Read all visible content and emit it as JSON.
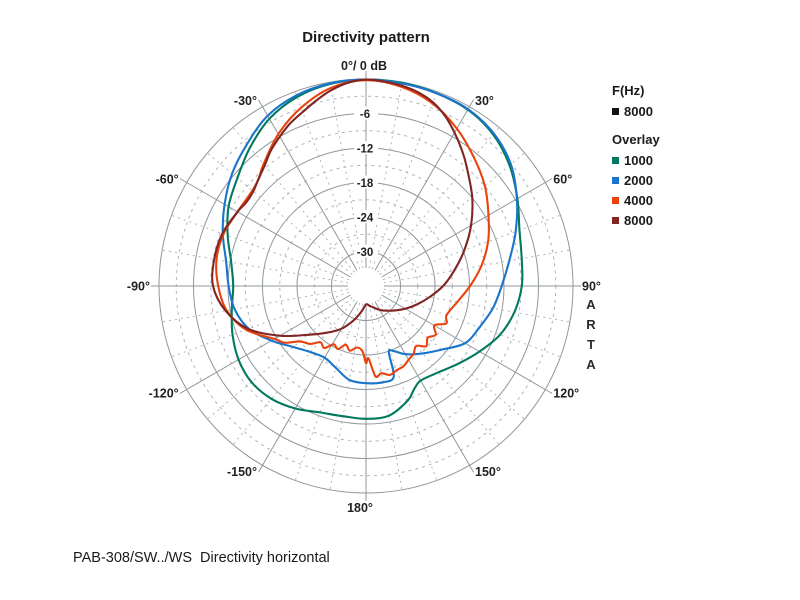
{
  "title": "Directivity pattern",
  "caption": "PAB-308/SW../WS  Directivity horizontal",
  "watermark": "ARTA",
  "legend": {
    "freq_title": "F(Hz)",
    "freq_items": [
      {
        "label": "8000",
        "color": "#141414"
      }
    ],
    "overlay_title": "Overlay",
    "overlay_items": [
      {
        "label": "1000",
        "color": "#00795E"
      },
      {
        "label": "2000",
        "color": "#1B74CB"
      },
      {
        "label": "4000",
        "color": "#E8430D"
      },
      {
        "label": "8000",
        "color": "#802521"
      }
    ]
  },
  "chart_data": {
    "type": "polar-directivity",
    "title": "Directivity pattern",
    "units": {
      "angle": "deg",
      "value": "dB"
    },
    "radial_axis": {
      "max_db": 0,
      "min_db": -36,
      "clamp_db": -33,
      "solid_rings_db": [
        0,
        -6,
        -12,
        -18,
        -24,
        -30
      ],
      "dashed_rings_db": [
        -3,
        -9,
        -15,
        -21,
        -27
      ],
      "ring_labels": [
        {
          "db": -6,
          "text": "-6"
        },
        {
          "db": -12,
          "text": "-12"
        },
        {
          "db": -18,
          "text": "-18"
        },
        {
          "db": -24,
          "text": "-24"
        },
        {
          "db": -30,
          "text": "-30"
        }
      ]
    },
    "angle_axis": {
      "major_step_deg": 30,
      "minor_step_deg": 10,
      "zero_label": "0°/ 0 dB",
      "labels": [
        {
          "angle": 0,
          "text": "0°/ 0 dB"
        },
        {
          "angle": 30,
          "text": "30°"
        },
        {
          "angle": 60,
          "text": "60°"
        },
        {
          "angle": 90,
          "text": "90°"
        },
        {
          "angle": 120,
          "text": "120°"
        },
        {
          "angle": 150,
          "text": "150°"
        },
        {
          "angle": 180,
          "text": "180°"
        },
        {
          "angle": -30,
          "text": "-30°"
        },
        {
          "angle": -60,
          "text": "-60°"
        },
        {
          "angle": -90,
          "text": "-90°"
        },
        {
          "angle": -120,
          "text": "-120°"
        },
        {
          "angle": -150,
          "text": "-150°"
        }
      ]
    },
    "colors": {
      "grid_major": "#8F979C",
      "grid_minor": "#AEB4B8",
      "text": "#1F1F1F"
    },
    "series": [
      {
        "name": "1000",
        "color": "#00795E",
        "points": [
          [
            -180,
            -12.9
          ],
          [
            -170,
            -13.0
          ],
          [
            -160,
            -12.6
          ],
          [
            -150,
            -11.4
          ],
          [
            -140,
            -10.4
          ],
          [
            -130,
            -10.0
          ],
          [
            -120,
            -10.4
          ],
          [
            -110,
            -11.3
          ],
          [
            -100,
            -12.3
          ],
          [
            -90,
            -12.9
          ],
          [
            -80,
            -12.2
          ],
          [
            -70,
            -10.4
          ],
          [
            -60,
            -8.4
          ],
          [
            -50,
            -6.8
          ],
          [
            -40,
            -4.6
          ],
          [
            -30,
            -2.4
          ],
          [
            -20,
            -1.0
          ],
          [
            -10,
            -0.3
          ],
          [
            0,
            -0.1
          ],
          [
            10,
            -0.1
          ],
          [
            20,
            -0.3
          ],
          [
            30,
            -0.6
          ],
          [
            40,
            -1.6
          ],
          [
            50,
            -3.4
          ],
          [
            60,
            -5.6
          ],
          [
            70,
            -7.6
          ],
          [
            80,
            -8.5
          ],
          [
            90,
            -8.9
          ],
          [
            100,
            -9.8
          ],
          [
            110,
            -11.2
          ],
          [
            120,
            -13.2
          ],
          [
            130,
            -15.0
          ],
          [
            140,
            -16.4
          ],
          [
            150,
            -17.0
          ],
          [
            155,
            -16.2
          ],
          [
            160,
            -14.8
          ],
          [
            170,
            -13.1
          ],
          [
            180,
            -12.9
          ]
        ]
      },
      {
        "name": "2000",
        "color": "#1B74CB",
        "points": [
          [
            -180,
            -19.1
          ],
          [
            -170,
            -19.4
          ],
          [
            -160,
            -20.8
          ],
          [
            -150,
            -21.6
          ],
          [
            -140,
            -21.0
          ],
          [
            -130,
            -19.5
          ],
          [
            -120,
            -17.0
          ],
          [
            -110,
            -14.3
          ],
          [
            -100,
            -12.8
          ],
          [
            -90,
            -12.1
          ],
          [
            -80,
            -11.3
          ],
          [
            -70,
            -9.5
          ],
          [
            -60,
            -7.6
          ],
          [
            -50,
            -5.6
          ],
          [
            -40,
            -3.8
          ],
          [
            -30,
            -1.8
          ],
          [
            -20,
            -0.7
          ],
          [
            -10,
            -0.2
          ],
          [
            0,
            -0.1
          ],
          [
            10,
            -0.2
          ],
          [
            20,
            -0.3
          ],
          [
            30,
            -0.5
          ],
          [
            40,
            -1.4
          ],
          [
            50,
            -3.1
          ],
          [
            60,
            -5.7
          ],
          [
            70,
            -8.3
          ],
          [
            80,
            -10.7
          ],
          [
            90,
            -12.4
          ],
          [
            100,
            -13.6
          ],
          [
            110,
            -15.0
          ],
          [
            120,
            -16.1
          ],
          [
            130,
            -18.8
          ],
          [
            140,
            -20.7
          ],
          [
            150,
            -22.3
          ],
          [
            157,
            -23.7
          ],
          [
            161,
            -23.8
          ],
          [
            163,
            -19.5
          ],
          [
            170,
            -19.0
          ],
          [
            180,
            -19.1
          ]
        ]
      },
      {
        "name": "4000",
        "color": "#E8430D",
        "points": [
          [
            -180,
            -22.6
          ],
          [
            -177,
            -24.6
          ],
          [
            -172,
            -25.2
          ],
          [
            -166,
            -24.4
          ],
          [
            -161,
            -25.2
          ],
          [
            -156,
            -24.0
          ],
          [
            -151,
            -24.4
          ],
          [
            -146,
            -23.0
          ],
          [
            -141,
            -23.4
          ],
          [
            -136,
            -22.0
          ],
          [
            -130,
            -21.0
          ],
          [
            -125,
            -18.8
          ],
          [
            -120,
            -17.6
          ],
          [
            -110,
            -13.8
          ],
          [
            -100,
            -11.4
          ],
          [
            -90,
            -10.3
          ],
          [
            -80,
            -9.6
          ],
          [
            -70,
            -9.6
          ],
          [
            -60,
            -10.2
          ],
          [
            -50,
            -10.2
          ],
          [
            -45,
            -9.6
          ],
          [
            -40,
            -8.3
          ],
          [
            -30,
            -5.5
          ],
          [
            -20,
            -3.0
          ],
          [
            -10,
            -1.0
          ],
          [
            0,
            -0.2
          ],
          [
            10,
            -0.8
          ],
          [
            20,
            -2.2
          ],
          [
            30,
            -4.4
          ],
          [
            40,
            -6.8
          ],
          [
            50,
            -9.0
          ],
          [
            60,
            -11.4
          ],
          [
            70,
            -13.4
          ],
          [
            80,
            -15.6
          ],
          [
            90,
            -17.9
          ],
          [
            100,
            -19.9
          ],
          [
            110,
            -21.1
          ],
          [
            115,
            -20.6
          ],
          [
            120,
            -22.3
          ],
          [
            125,
            -21.2
          ],
          [
            130,
            -22.0
          ],
          [
            135,
            -21.2
          ],
          [
            140,
            -22.4
          ],
          [
            145,
            -21.6
          ],
          [
            150,
            -21.2
          ],
          [
            155,
            -20.6
          ],
          [
            160,
            -20.4
          ],
          [
            165,
            -20.0
          ],
          [
            170,
            -20.6
          ],
          [
            174,
            -20.2
          ],
          [
            178,
            -23.4
          ],
          [
            180,
            -22.6
          ]
        ]
      },
      {
        "name": "8000",
        "color": "#802521",
        "points": [
          [
            -180,
            -32.8
          ],
          [
            -170,
            -31.5
          ],
          [
            -160,
            -29.6
          ],
          [
            -150,
            -27.4
          ],
          [
            -140,
            -25.4
          ],
          [
            -130,
            -22.8
          ],
          [
            -120,
            -18.7
          ],
          [
            -110,
            -14.2
          ],
          [
            -100,
            -11.2
          ],
          [
            -90,
            -9.4
          ],
          [
            -80,
            -9.2
          ],
          [
            -70,
            -9.4
          ],
          [
            -60,
            -10.2
          ],
          [
            -55,
            -10.6
          ],
          [
            -50,
            -10.4
          ],
          [
            -45,
            -9.6
          ],
          [
            -40,
            -8.6
          ],
          [
            -35,
            -7.2
          ],
          [
            -30,
            -6.0
          ],
          [
            -25,
            -4.8
          ],
          [
            -20,
            -3.8
          ],
          [
            -15,
            -2.6
          ],
          [
            -10,
            -1.4
          ],
          [
            -5,
            -0.5
          ],
          [
            0,
            -0.1
          ],
          [
            5,
            -0.3
          ],
          [
            10,
            -0.6
          ],
          [
            15,
            -1.1
          ],
          [
            20,
            -2.0
          ],
          [
            25,
            -3.4
          ],
          [
            30,
            -5.2
          ],
          [
            35,
            -7.0
          ],
          [
            40,
            -8.8
          ],
          [
            50,
            -11.9
          ],
          [
            60,
            -14.9
          ],
          [
            70,
            -17.8
          ],
          [
            80,
            -20.4
          ],
          [
            90,
            -22.6
          ],
          [
            100,
            -24.8
          ],
          [
            110,
            -26.6
          ],
          [
            120,
            -28.1
          ],
          [
            130,
            -29.4
          ],
          [
            140,
            -30.4
          ],
          [
            150,
            -31.2
          ],
          [
            160,
            -32.0
          ],
          [
            170,
            -32.5
          ],
          [
            180,
            -32.8
          ]
        ]
      }
    ],
    "legend_position": "right"
  }
}
